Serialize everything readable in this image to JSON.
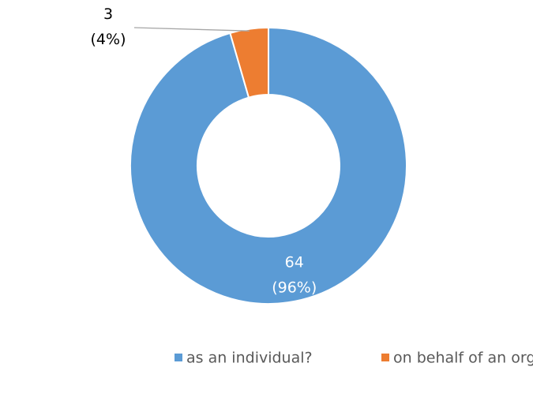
{
  "chart_data": {
    "type": "donut",
    "categories": [
      "as an individual?",
      "on behalf of an organisation?"
    ],
    "values": [
      64,
      3
    ],
    "value_labels": [
      "64\n(96%)",
      "3\n(4%)"
    ],
    "colors": [
      "#5b9bd5",
      "#ed7d31"
    ],
    "legend": "bottom"
  }
}
